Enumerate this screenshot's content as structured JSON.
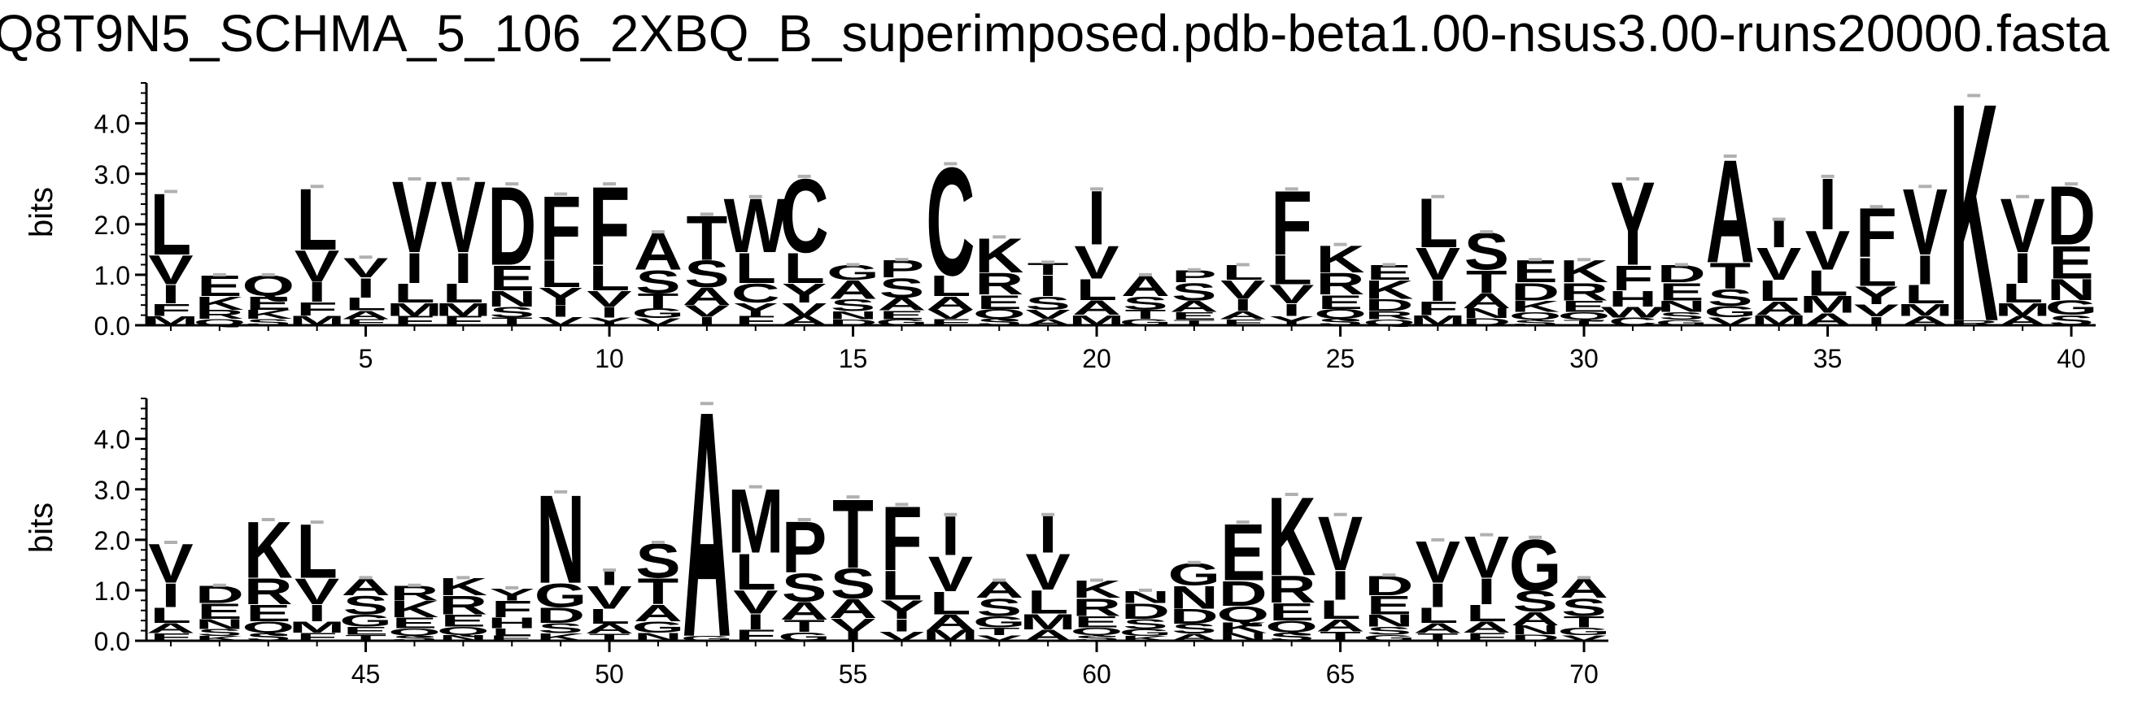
{
  "figure": {
    "title": "Q8T9N5_SCHMA_5_106_2XBQ_B_superimposed.pdb-beta1.00-nsus3.00-runs20000.fasta"
  },
  "chart_data": {
    "type": "sequence-logo",
    "title": "Q8T9N5_SCHMA_5_106_2XBQ_B_superimposed.pdb-beta1.00-nsus3.00-runs20000.fasta",
    "ylabel": "bits",
    "ylim": [
      0,
      4.8
    ],
    "yticks": [
      "0.0",
      "1.0",
      "2.0",
      "3.0",
      "4.0"
    ],
    "xlim": [
      1,
      70
    ],
    "rows": [
      {
        "x_start": 1,
        "x_end": 40,
        "xticks": [
          5,
          10,
          15,
          20,
          25,
          30,
          35,
          40
        ]
      },
      {
        "x_start": 41,
        "x_end": 70,
        "xticks": [
          45,
          50,
          55,
          60,
          65,
          70
        ]
      }
    ],
    "positions": [
      {
        "pos": 1,
        "total": 2.65,
        "top": "L",
        "top_h": 1.25,
        "stack": [
          "V",
          "I",
          "F",
          "M"
        ]
      },
      {
        "pos": 2,
        "total": 1.0,
        "top": "",
        "top_h": 0.0,
        "stack": [
          "E",
          "K",
          "R",
          "Q"
        ]
      },
      {
        "pos": 3,
        "total": 1.0,
        "top": "",
        "top_h": 0.0,
        "stack": [
          "Q",
          "E",
          "K",
          "S"
        ]
      },
      {
        "pos": 4,
        "total": 2.75,
        "top": "L",
        "top_h": 1.25,
        "stack": [
          "V",
          "I",
          "F",
          "M"
        ]
      },
      {
        "pos": 5,
        "total": 1.35,
        "top": "V",
        "top_h": 0.4,
        "stack": [
          "I",
          "L",
          "A",
          "F"
        ]
      },
      {
        "pos": 6,
        "total": 2.9,
        "top": "V",
        "top_h": 1.45,
        "stack": [
          "I",
          "L",
          "M",
          "F"
        ]
      },
      {
        "pos": 7,
        "total": 2.9,
        "top": "V",
        "top_h": 1.45,
        "stack": [
          "I",
          "L",
          "M",
          "F"
        ]
      },
      {
        "pos": 8,
        "total": 2.8,
        "top": "D",
        "top_h": 1.6,
        "stack": [
          "E",
          "N",
          "S",
          "T"
        ]
      },
      {
        "pos": 9,
        "total": 2.6,
        "top": "F",
        "top_h": 1.3,
        "stack": [
          "L",
          "Y",
          "I",
          "V"
        ]
      },
      {
        "pos": 10,
        "total": 2.8,
        "top": "F",
        "top_h": 1.6,
        "stack": [
          "L",
          "V",
          "I",
          "Y"
        ]
      },
      {
        "pos": 11,
        "total": 1.85,
        "top": "A",
        "top_h": 0.75,
        "stack": [
          "S",
          "T",
          "G",
          "V"
        ]
      },
      {
        "pos": 12,
        "total": 2.2,
        "top": "T",
        "top_h": 0.9,
        "stack": [
          "S",
          "A",
          "V",
          "I"
        ]
      },
      {
        "pos": 13,
        "total": 2.55,
        "top": "W",
        "top_h": 1.1,
        "stack": [
          "L",
          "C",
          "Y",
          "F"
        ]
      },
      {
        "pos": 14,
        "total": 2.95,
        "top": "C",
        "top_h": 1.5,
        "stack": [
          "L",
          "Y",
          "V",
          "A"
        ]
      },
      {
        "pos": 15,
        "total": 1.2,
        "top": "G",
        "top_h": 0.3,
        "stack": [
          "A",
          "S",
          "N",
          "D"
        ]
      },
      {
        "pos": 16,
        "total": 1.3,
        "top": "P",
        "top_h": 0.35,
        "stack": [
          "S",
          "A",
          "E",
          "G"
        ]
      },
      {
        "pos": 17,
        "total": 3.2,
        "top": "C",
        "top_h": 2.2,
        "stack": [
          "L",
          "A",
          "V",
          "F"
        ]
      },
      {
        "pos": 18,
        "total": 1.75,
        "top": "K",
        "top_h": 0.7,
        "stack": [
          "R",
          "E",
          "Q",
          "S"
        ]
      },
      {
        "pos": 19,
        "total": 1.25,
        "top": "T",
        "top_h": 0.25,
        "stack": [
          "I",
          "S",
          "V",
          "A"
        ]
      },
      {
        "pos": 20,
        "total": 2.7,
        "top": "I",
        "top_h": 1.1,
        "stack": [
          "V",
          "L",
          "A",
          "M"
        ]
      },
      {
        "pos": 21,
        "total": 1.0,
        "top": "",
        "top_h": 0.0,
        "stack": [
          "A",
          "S",
          "T",
          "G"
        ]
      },
      {
        "pos": 22,
        "total": 1.1,
        "top": "P",
        "top_h": 0.25,
        "stack": [
          "S",
          "A",
          "E",
          "T"
        ]
      },
      {
        "pos": 23,
        "total": 1.2,
        "top": "L",
        "top_h": 0.3,
        "stack": [
          "V",
          "I",
          "A",
          "F"
        ]
      },
      {
        "pos": 24,
        "total": 2.7,
        "top": "F",
        "top_h": 1.3,
        "stack": [
          "L",
          "V",
          "I",
          "Y"
        ]
      },
      {
        "pos": 25,
        "total": 1.6,
        "top": "K",
        "top_h": 0.55,
        "stack": [
          "R",
          "E",
          "Q",
          "S"
        ]
      },
      {
        "pos": 26,
        "total": 1.2,
        "top": "E",
        "top_h": 0.3,
        "stack": [
          "K",
          "D",
          "R",
          "Q"
        ]
      },
      {
        "pos": 27,
        "total": 2.55,
        "top": "L",
        "top_h": 1.0,
        "stack": [
          "V",
          "I",
          "F",
          "M"
        ]
      },
      {
        "pos": 28,
        "total": 1.85,
        "top": "S",
        "top_h": 0.75,
        "stack": [
          "T",
          "A",
          "N",
          "D"
        ]
      },
      {
        "pos": 29,
        "total": 1.3,
        "top": "E",
        "top_h": 0.45,
        "stack": [
          "D",
          "K",
          "Q",
          "S"
        ]
      },
      {
        "pos": 30,
        "total": 1.3,
        "top": "K",
        "top_h": 0.45,
        "stack": [
          "R",
          "E",
          "Q",
          "T"
        ]
      },
      {
        "pos": 31,
        "total": 2.9,
        "top": "Y",
        "top_h": 1.7,
        "stack": [
          "F",
          "H",
          "W",
          "C"
        ]
      },
      {
        "pos": 32,
        "total": 1.2,
        "top": "D",
        "top_h": 0.35,
        "stack": [
          "E",
          "N",
          "S",
          "G"
        ]
      },
      {
        "pos": 33,
        "total": 3.35,
        "top": "A",
        "top_h": 2.1,
        "stack": [
          "T",
          "S",
          "G",
          "V"
        ]
      },
      {
        "pos": 34,
        "total": 2.1,
        "top": "I",
        "top_h": 0.55,
        "stack": [
          "V",
          "L",
          "A",
          "M"
        ]
      },
      {
        "pos": 35,
        "total": 2.95,
        "top": "I",
        "top_h": 1.05,
        "stack": [
          "V",
          "L",
          "M",
          "A"
        ]
      },
      {
        "pos": 36,
        "total": 2.35,
        "top": "F",
        "top_h": 1.0,
        "stack": [
          "L",
          "Y",
          "V",
          "I"
        ]
      },
      {
        "pos": 37,
        "total": 2.75,
        "top": "V",
        "top_h": 1.35,
        "stack": [
          "I",
          "L",
          "M",
          "A"
        ]
      },
      {
        "pos": 38,
        "total": 4.55,
        "top": "K",
        "top_h": 4.45,
        "stack": [
          "R"
        ]
      },
      {
        "pos": 39,
        "total": 2.55,
        "top": "V",
        "top_h": 1.1,
        "stack": [
          "I",
          "L",
          "M",
          "A"
        ]
      },
      {
        "pos": 40,
        "total": 2.8,
        "top": "D",
        "top_h": 1.2,
        "stack": [
          "E",
          "N",
          "G",
          "S"
        ]
      },
      {
        "pos": 41,
        "total": 1.95,
        "top": "V",
        "top_h": 0.8,
        "stack": [
          "I",
          "L",
          "A",
          "F"
        ]
      },
      {
        "pos": 42,
        "total": 1.1,
        "top": "D",
        "top_h": 0.35,
        "stack": [
          "E",
          "N",
          "S",
          "K"
        ]
      },
      {
        "pos": 43,
        "total": 2.4,
        "top": "K",
        "top_h": 1.15,
        "stack": [
          "R",
          "E",
          "Q",
          "S"
        ]
      },
      {
        "pos": 44,
        "total": 2.35,
        "top": "L",
        "top_h": 1.1,
        "stack": [
          "V",
          "I",
          "M",
          "F"
        ]
      },
      {
        "pos": 45,
        "total": 1.25,
        "top": "A",
        "top_h": 0.35,
        "stack": [
          "S",
          "G",
          "E",
          "T"
        ]
      },
      {
        "pos": 46,
        "total": 1.1,
        "top": "R",
        "top_h": 0.3,
        "stack": [
          "K",
          "E",
          "Q",
          "S"
        ]
      },
      {
        "pos": 47,
        "total": 1.25,
        "top": "K",
        "top_h": 0.35,
        "stack": [
          "R",
          "E",
          "Q",
          "N"
        ]
      },
      {
        "pos": 48,
        "total": 1.05,
        "top": "Y",
        "top_h": 0.25,
        "stack": [
          "F",
          "H",
          "L",
          "E"
        ]
      },
      {
        "pos": 49,
        "total": 2.95,
        "top": "N",
        "top_h": 1.8,
        "stack": [
          "G",
          "D",
          "S",
          "K"
        ]
      },
      {
        "pos": 50,
        "total": 1.4,
        "top": "I",
        "top_h": 0.3,
        "stack": [
          "V",
          "L",
          "A",
          "T"
        ]
      },
      {
        "pos": 51,
        "total": 1.95,
        "top": "S",
        "top_h": 0.7,
        "stack": [
          "T",
          "A",
          "G",
          "N"
        ]
      },
      {
        "pos": 52,
        "total": 4.7,
        "top": "A",
        "top_h": 4.6,
        "stack": [
          "G"
        ]
      },
      {
        "pos": 53,
        "total": 3.05,
        "top": "M",
        "top_h": 1.3,
        "stack": [
          "L",
          "V",
          "I",
          "F"
        ]
      },
      {
        "pos": 54,
        "total": 2.4,
        "top": "P",
        "top_h": 1.05,
        "stack": [
          "S",
          "A",
          "T",
          "G"
        ]
      },
      {
        "pos": 55,
        "total": 2.85,
        "top": "T",
        "top_h": 1.4,
        "stack": [
          "S",
          "A",
          "V",
          "I"
        ]
      },
      {
        "pos": 56,
        "total": 2.7,
        "top": "F",
        "top_h": 1.3,
        "stack": [
          "L",
          "Y",
          "I",
          "V"
        ]
      },
      {
        "pos": 57,
        "total": 2.5,
        "top": "I",
        "top_h": 0.8,
        "stack": [
          "V",
          "L",
          "A",
          "M"
        ]
      },
      {
        "pos": 58,
        "total": 1.2,
        "top": "A",
        "top_h": 0.35,
        "stack": [
          "S",
          "G",
          "T",
          "V"
        ]
      },
      {
        "pos": 59,
        "total": 2.5,
        "top": "I",
        "top_h": 0.75,
        "stack": [
          "V",
          "L",
          "M",
          "A"
        ]
      },
      {
        "pos": 60,
        "total": 1.2,
        "top": "K",
        "top_h": 0.35,
        "stack": [
          "R",
          "E",
          "Q",
          "S"
        ]
      },
      {
        "pos": 61,
        "total": 1.0,
        "top": "N",
        "top_h": 0.25,
        "stack": [
          "D",
          "S",
          "G",
          "K"
        ]
      },
      {
        "pos": 62,
        "total": 1.55,
        "top": "G",
        "top_h": 0.45,
        "stack": [
          "N",
          "D",
          "S",
          "A"
        ]
      },
      {
        "pos": 63,
        "total": 2.35,
        "top": "E",
        "top_h": 1.15,
        "stack": [
          "D",
          "Q",
          "K",
          "N"
        ]
      },
      {
        "pos": 64,
        "total": 2.9,
        "top": "K",
        "top_h": 1.6,
        "stack": [
          "R",
          "E",
          "Q",
          "S"
        ]
      },
      {
        "pos": 65,
        "total": 2.5,
        "top": "V",
        "top_h": 1.1,
        "stack": [
          "I",
          "L",
          "A",
          "T"
        ]
      },
      {
        "pos": 66,
        "total": 1.3,
        "top": "D",
        "top_h": 0.4,
        "stack": [
          "E",
          "N",
          "S",
          "G"
        ]
      },
      {
        "pos": 67,
        "total": 2.0,
        "top": "V",
        "top_h": 0.85,
        "stack": [
          "I",
          "L",
          "A",
          "T"
        ]
      },
      {
        "pos": 68,
        "total": 2.1,
        "top": "V",
        "top_h": 0.85,
        "stack": [
          "I",
          "L",
          "A",
          "F"
        ]
      },
      {
        "pos": 69,
        "total": 2.05,
        "top": "G",
        "top_h": 1.05,
        "stack": [
          "S",
          "A",
          "N",
          "D"
        ]
      },
      {
        "pos": 70,
        "total": 1.25,
        "top": "A",
        "top_h": 0.4,
        "stack": [
          "S",
          "T",
          "G",
          "V"
        ]
      }
    ]
  }
}
